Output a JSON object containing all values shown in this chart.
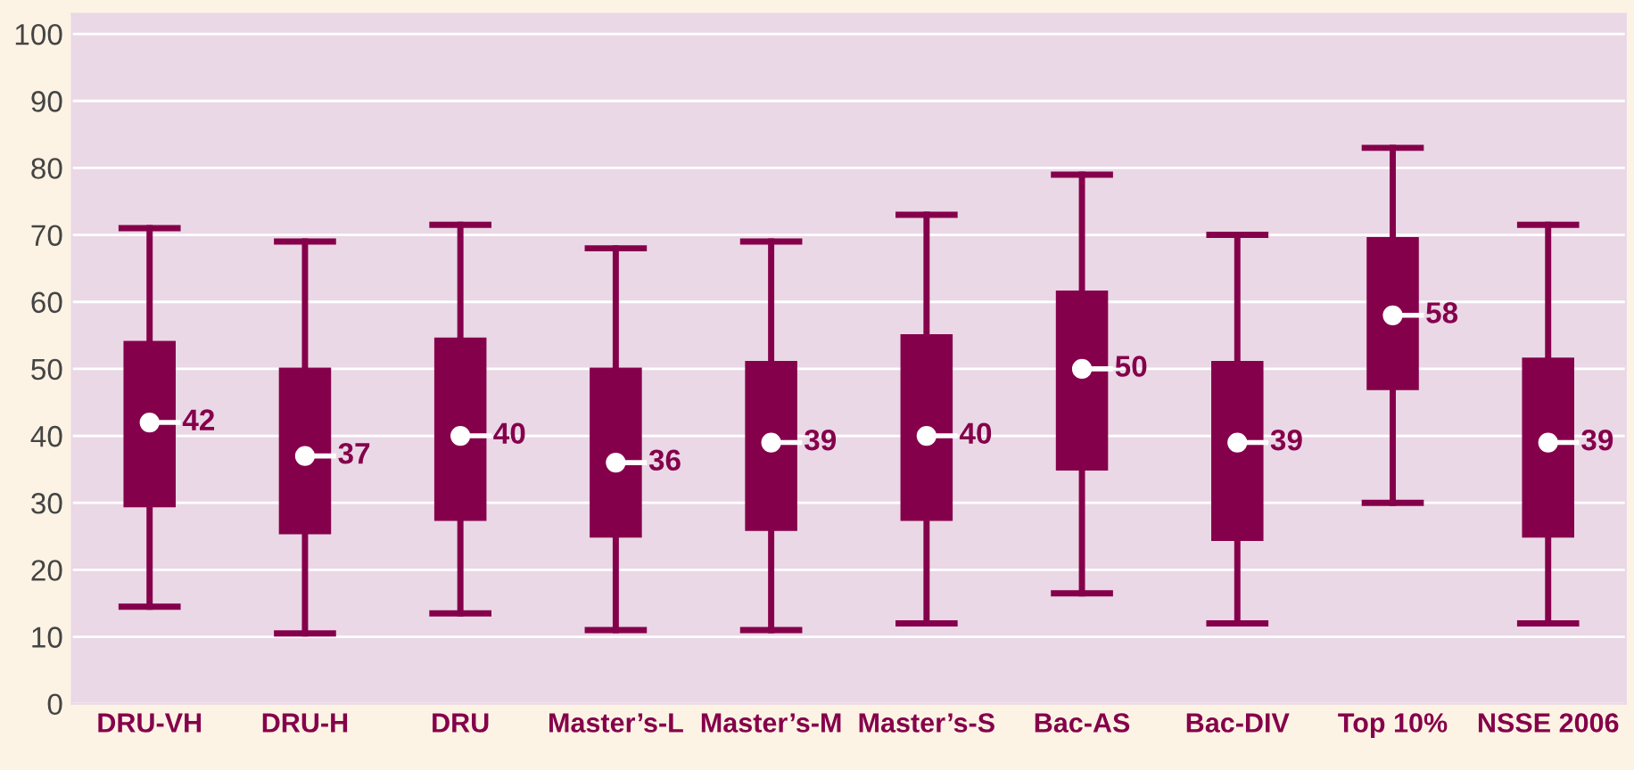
{
  "chart_data": {
    "type": "box",
    "categories": [
      "DRU-VH",
      "DRU-H",
      "DRU",
      "Master’s-L",
      "Master’s-M",
      "Master’s-S",
      "Bac-AS",
      "Bac-DIV",
      "Top 10%",
      "NSSE 2006"
    ],
    "color": "#85004b",
    "boxes": [
      {
        "low": 14.5,
        "q1": 29.5,
        "median": 42,
        "q3": 54,
        "high": 71
      },
      {
        "low": 10.5,
        "q1": 25.5,
        "median": 37,
        "q3": 50,
        "high": 69
      },
      {
        "low": 13.5,
        "q1": 27.5,
        "median": 40,
        "q3": 54.5,
        "high": 71.5
      },
      {
        "low": 11,
        "q1": 25,
        "median": 36,
        "q3": 50,
        "high": 68
      },
      {
        "low": 11,
        "q1": 26,
        "median": 39,
        "q3": 51,
        "high": 69
      },
      {
        "low": 12,
        "q1": 27.5,
        "median": 40,
        "q3": 55,
        "high": 73
      },
      {
        "low": 16.5,
        "q1": 35,
        "median": 50,
        "q3": 61.5,
        "high": 79
      },
      {
        "low": 12,
        "q1": 24.5,
        "median": 39,
        "q3": 51,
        "high": 70
      },
      {
        "low": 30,
        "q1": 47,
        "median": 58,
        "q3": 69.5,
        "high": 83
      },
      {
        "low": 12,
        "q1": 25,
        "median": 39,
        "q3": 51.5,
        "high": 71.5
      }
    ],
    "ylim": [
      0,
      103
    ],
    "yticks": [
      0,
      10,
      20,
      30,
      40,
      50,
      60,
      70,
      80,
      90,
      100
    ],
    "grid": "y",
    "value_labels": [
      "42",
      "37",
      "40",
      "36",
      "39",
      "40",
      "50",
      "39",
      "58",
      "39"
    ]
  }
}
